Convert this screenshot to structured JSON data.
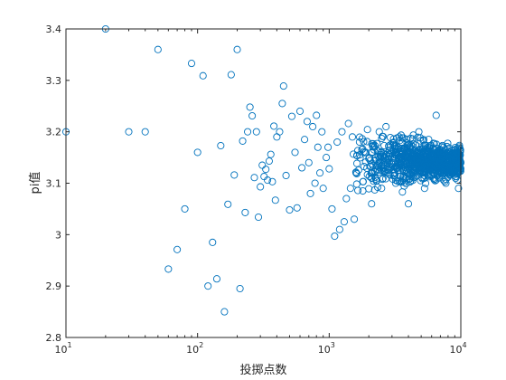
{
  "figure": {
    "background": "#ffffff",
    "axes_color": "#262626"
  },
  "chart_data": {
    "type": "scatter",
    "xlabel": "投掷点数",
    "ylabel": "pi值",
    "xscale": "log",
    "xlim": [
      10,
      10000
    ],
    "ylim": [
      2.8,
      3.4
    ],
    "grid": false,
    "marker": "circle-open",
    "color": "#0072bd",
    "x_ticks": [
      {
        "base": "10",
        "exp": "1",
        "value": 10
      },
      {
        "base": "10",
        "exp": "2",
        "value": 100
      },
      {
        "base": "10",
        "exp": "3",
        "value": 1000
      },
      {
        "base": "10",
        "exp": "4",
        "value": 10000
      }
    ],
    "y_ticks": [
      {
        "label": "2.8",
        "value": 2.8
      },
      {
        "label": "2.9",
        "value": 2.9
      },
      {
        "label": "3",
        "value": 3.0
      },
      {
        "label": "3.1",
        "value": 3.1
      },
      {
        "label": "3.2",
        "value": 3.2
      },
      {
        "label": "3.3",
        "value": 3.3
      },
      {
        "label": "3.4",
        "value": 3.4
      }
    ],
    "points": [
      [
        10,
        3.2
      ],
      [
        20,
        3.4
      ],
      [
        30,
        3.2
      ],
      [
        40,
        3.2
      ],
      [
        50,
        3.36
      ],
      [
        60,
        2.933
      ],
      [
        70,
        2.971
      ],
      [
        80,
        3.05
      ],
      [
        90,
        3.333
      ],
      [
        100,
        3.16
      ],
      [
        110,
        3.309
      ],
      [
        120,
        2.9
      ],
      [
        130,
        2.985
      ],
      [
        140,
        2.914
      ],
      [
        150,
        3.173
      ],
      [
        160,
        2.85
      ],
      [
        170,
        3.059
      ],
      [
        180,
        3.311
      ],
      [
        190,
        3.116
      ],
      [
        200,
        3.36
      ],
      [
        210,
        2.895
      ],
      [
        220,
        3.182
      ],
      [
        230,
        3.043
      ],
      [
        240,
        3.2
      ],
      [
        250,
        3.248
      ],
      [
        260,
        3.231
      ],
      [
        270,
        3.111
      ],
      [
        280,
        3.2
      ],
      [
        290,
        3.034
      ],
      [
        300,
        3.093
      ],
      [
        310,
        3.135
      ],
      [
        320,
        3.113
      ],
      [
        330,
        3.127
      ],
      [
        340,
        3.106
      ],
      [
        350,
        3.143
      ],
      [
        360,
        3.156
      ],
      [
        370,
        3.103
      ],
      [
        380,
        3.211
      ],
      [
        390,
        3.067
      ],
      [
        400,
        3.19
      ],
      [
        420,
        3.2
      ],
      [
        440,
        3.255
      ],
      [
        450,
        3.289
      ],
      [
        470,
        3.115
      ],
      [
        500,
        3.048
      ],
      [
        520,
        3.23
      ],
      [
        550,
        3.16
      ],
      [
        570,
        3.052
      ],
      [
        600,
        3.24
      ],
      [
        620,
        3.13
      ],
      [
        650,
        3.185
      ],
      [
        680,
        3.22
      ],
      [
        700,
        3.14
      ],
      [
        720,
        3.08
      ],
      [
        750,
        3.21
      ],
      [
        780,
        3.1
      ],
      [
        800,
        3.232
      ],
      [
        820,
        3.17
      ],
      [
        850,
        3.12
      ],
      [
        880,
        3.2
      ],
      [
        900,
        3.09
      ],
      [
        950,
        3.15
      ],
      [
        980,
        3.17
      ],
      [
        1000,
        3.128
      ],
      [
        1050,
        3.05
      ],
      [
        1100,
        2.997
      ],
      [
        1150,
        3.18
      ],
      [
        1200,
        3.01
      ],
      [
        1250,
        3.2
      ],
      [
        1300,
        3.025
      ],
      [
        1350,
        3.07
      ],
      [
        1400,
        3.216
      ],
      [
        1450,
        3.09
      ],
      [
        1500,
        3.19
      ],
      [
        1550,
        3.03
      ],
      [
        1600,
        3.12
      ],
      [
        1700,
        3.18
      ],
      [
        1800,
        3.085
      ],
      [
        1900,
        3.16
      ],
      [
        2000,
        3.148
      ],
      [
        2100,
        3.06
      ],
      [
        2200,
        3.17
      ],
      [
        2300,
        3.105
      ],
      [
        2400,
        3.2
      ],
      [
        2500,
        3.09
      ],
      [
        2600,
        3.152
      ],
      [
        2700,
        3.21
      ],
      [
        2800,
        3.12
      ],
      [
        2900,
        3.17
      ],
      [
        3000,
        3.14
      ],
      [
        3200,
        3.1
      ],
      [
        3400,
        3.19
      ],
      [
        3600,
        3.083
      ],
      [
        3800,
        3.15
      ],
      [
        4000,
        3.06
      ],
      [
        4200,
        3.174
      ],
      [
        4400,
        3.12
      ],
      [
        4600,
        3.16
      ],
      [
        4800,
        3.2
      ],
      [
        5000,
        3.13
      ],
      [
        5300,
        3.09
      ],
      [
        5600,
        3.17
      ],
      [
        5900,
        3.14
      ],
      [
        6200,
        3.11
      ],
      [
        6500,
        3.232
      ],
      [
        6800,
        3.15
      ],
      [
        7100,
        3.12
      ],
      [
        7400,
        3.17
      ],
      [
        7700,
        3.1
      ],
      [
        8000,
        3.145
      ],
      [
        8400,
        3.16
      ],
      [
        8800,
        3.13
      ],
      [
        9200,
        3.15
      ],
      [
        9600,
        3.09
      ],
      [
        10000,
        3.14
      ]
    ],
    "dense_region": {
      "description": "cloud of overlapping markers",
      "x_range": [
        1500,
        10000
      ],
      "center": 3.142,
      "spread": 0.035
    }
  }
}
